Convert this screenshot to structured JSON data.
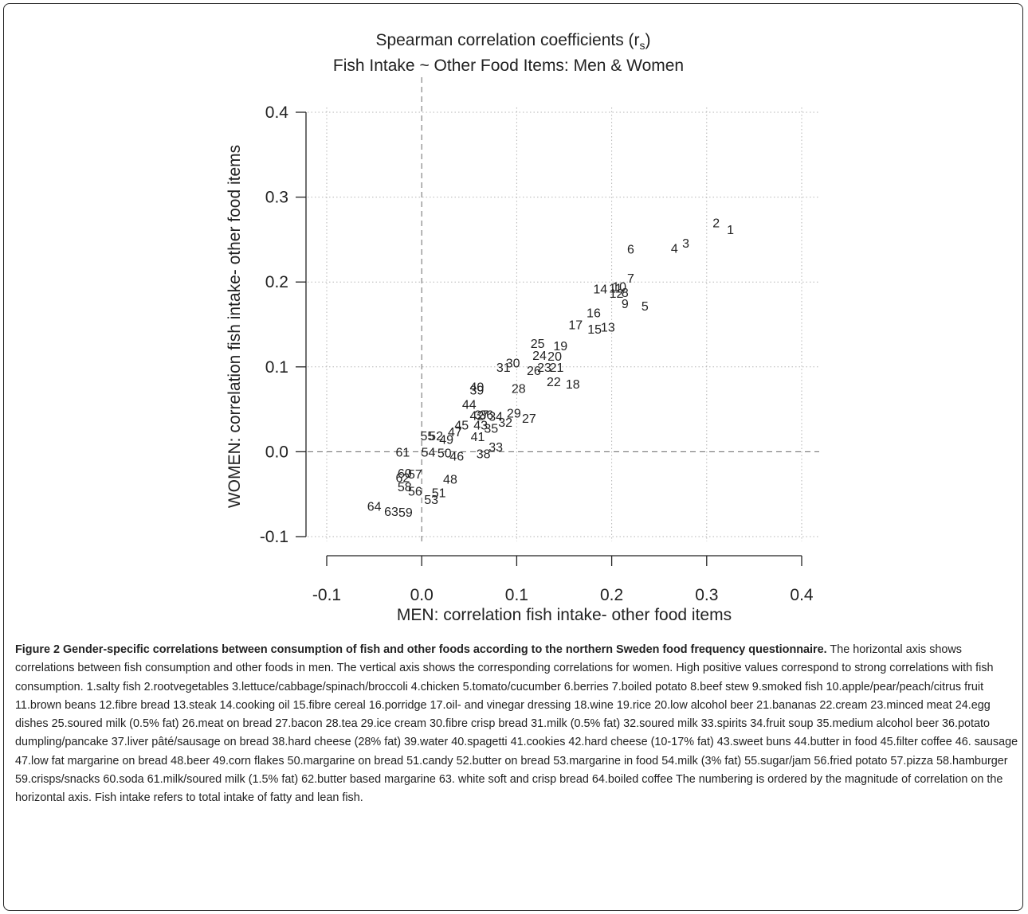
{
  "chart_data": {
    "type": "scatter",
    "title": "Spearman correlation coefficients (r",
    "title_subscript": "s",
    "title_close": ")",
    "subtitle": "Fish Intake ~ Other Food Items: Men & Women",
    "xlabel": "MEN: correlation fish intake- other food items",
    "ylabel": "WOMEN: correlation fish intake- other food items",
    "xlim": [
      -0.1,
      0.4
    ],
    "ylim": [
      -0.1,
      0.4
    ],
    "xticks": [
      "-0.1",
      "0.0",
      "0.1",
      "0.2",
      "0.3",
      "0.4"
    ],
    "yticks": [
      "-0.1",
      "0.0",
      "0.1",
      "0.2",
      "0.3",
      "0.4"
    ],
    "grid": true,
    "reference_lines": {
      "x": 0.0,
      "y": 0.0
    },
    "points": [
      {
        "label": "1",
        "x": 0.325,
        "y": 0.262
      },
      {
        "label": "2",
        "x": 0.31,
        "y": 0.27
      },
      {
        "label": "3",
        "x": 0.278,
        "y": 0.246
      },
      {
        "label": "4",
        "x": 0.266,
        "y": 0.24
      },
      {
        "label": "5",
        "x": 0.235,
        "y": 0.172
      },
      {
        "label": "6",
        "x": 0.22,
        "y": 0.239
      },
      {
        "label": "7",
        "x": 0.22,
        "y": 0.205
      },
      {
        "label": "8",
        "x": 0.214,
        "y": 0.188
      },
      {
        "label": "9",
        "x": 0.214,
        "y": 0.175
      },
      {
        "label": "10",
        "x": 0.208,
        "y": 0.195
      },
      {
        "label": "11",
        "x": 0.204,
        "y": 0.193
      },
      {
        "label": "12",
        "x": 0.205,
        "y": 0.187
      },
      {
        "label": "13",
        "x": 0.196,
        "y": 0.147
      },
      {
        "label": "14",
        "x": 0.188,
        "y": 0.192
      },
      {
        "label": "15",
        "x": 0.182,
        "y": 0.145
      },
      {
        "label": "16",
        "x": 0.181,
        "y": 0.164
      },
      {
        "label": "17",
        "x": 0.162,
        "y": 0.15
      },
      {
        "label": "18",
        "x": 0.159,
        "y": 0.08
      },
      {
        "label": "19",
        "x": 0.146,
        "y": 0.125
      },
      {
        "label": "20",
        "x": 0.14,
        "y": 0.113
      },
      {
        "label": "21",
        "x": 0.142,
        "y": 0.1
      },
      {
        "label": "22",
        "x": 0.139,
        "y": 0.083
      },
      {
        "label": "23",
        "x": 0.129,
        "y": 0.1
      },
      {
        "label": "24",
        "x": 0.124,
        "y": 0.114
      },
      {
        "label": "25",
        "x": 0.122,
        "y": 0.128
      },
      {
        "label": "26",
        "x": 0.118,
        "y": 0.096
      },
      {
        "label": "27",
        "x": 0.113,
        "y": 0.04
      },
      {
        "label": "28",
        "x": 0.102,
        "y": 0.075
      },
      {
        "label": "29",
        "x": 0.097,
        "y": 0.046
      },
      {
        "label": "30",
        "x": 0.096,
        "y": 0.105
      },
      {
        "label": "31",
        "x": 0.086,
        "y": 0.1
      },
      {
        "label": "32",
        "x": 0.088,
        "y": 0.035
      },
      {
        "label": "33",
        "x": 0.078,
        "y": 0.006
      },
      {
        "label": "34",
        "x": 0.078,
        "y": 0.042
      },
      {
        "label": "35",
        "x": 0.073,
        "y": 0.028
      },
      {
        "label": "36",
        "x": 0.068,
        "y": 0.044
      },
      {
        "label": "37",
        "x": 0.063,
        "y": 0.044
      },
      {
        "label": "38",
        "x": 0.065,
        "y": -0.002
      },
      {
        "label": "39",
        "x": 0.058,
        "y": 0.073
      },
      {
        "label": "40",
        "x": 0.058,
        "y": 0.077
      },
      {
        "label": "41",
        "x": 0.059,
        "y": 0.018
      },
      {
        "label": "42",
        "x": 0.058,
        "y": 0.043
      },
      {
        "label": "43",
        "x": 0.062,
        "y": 0.032
      },
      {
        "label": "44",
        "x": 0.05,
        "y": 0.056
      },
      {
        "label": "45",
        "x": 0.042,
        "y": 0.032
      },
      {
        "label": "46",
        "x": 0.037,
        "y": -0.005
      },
      {
        "label": "47",
        "x": 0.035,
        "y": 0.024
      },
      {
        "label": "48",
        "x": 0.03,
        "y": -0.032
      },
      {
        "label": "49",
        "x": 0.026,
        "y": 0.015
      },
      {
        "label": "50",
        "x": 0.024,
        "y": -0.001
      },
      {
        "label": "51",
        "x": 0.018,
        "y": -0.048
      },
      {
        "label": "52",
        "x": 0.015,
        "y": 0.019
      },
      {
        "label": "53",
        "x": 0.01,
        "y": -0.056
      },
      {
        "label": "54",
        "x": 0.007,
        "y": 0.0
      },
      {
        "label": "55",
        "x": 0.006,
        "y": 0.019
      },
      {
        "label": "56",
        "x": -0.007,
        "y": -0.046
      },
      {
        "label": "57",
        "x": -0.007,
        "y": -0.026
      },
      {
        "label": "58",
        "x": -0.018,
        "y": -0.041
      },
      {
        "label": "59",
        "x": -0.017,
        "y": -0.071
      },
      {
        "label": "60",
        "x": -0.018,
        "y": -0.025
      },
      {
        "label": "61",
        "x": -0.02,
        "y": 0.0
      },
      {
        "label": "62",
        "x": -0.02,
        "y": -0.03
      },
      {
        "label": "63",
        "x": -0.032,
        "y": -0.07
      },
      {
        "label": "64",
        "x": -0.05,
        "y": -0.064
      }
    ]
  },
  "caption": {
    "title": "Figure 2 Gender-specific correlations between consumption of fish and other foods according to the northern Sweden food frequency questionnaire.",
    "body": " The horizontal axis shows correlations between fish consumption and other foods in men. The vertical axis shows the corresponding correlations for women. High positive values correspond to strong correlations with fish consumption. 1.salty fish 2.rootvegetables 3.lettuce/cabbage/spinach/broccoli 4.chicken 5.tomato/cucumber 6.berries 7.boiled potato 8.beef stew 9.smoked fish 10.apple/pear/peach/citrus fruit 11.brown beans 12.fibre bread 13.steak 14.cooking oil 15.fibre cereal 16.porridge 17.oil- and vinegar dressing 18.wine 19.rice 20.low alcohol beer 21.bananas 22.cream 23.minced meat 24.egg dishes 25.soured milk (0.5% fat) 26.meat on bread  27.bacon 28.tea 29.ice cream 30.fibre crisp bread 31.milk (0.5% fat) 32.soured milk 33.spirits 34.fruit soup 35.medium alcohol beer 36.potato dumpling/pancake 37.liver pâté/sausage on bread 38.hard cheese (28% fat) 39.water 40.spagetti 41.cookies 42.hard cheese (10-17% fat) 43.sweet buns 44.butter in food 45.filter coffee 46. sausage 47.low fat margarine on bread 48.beer 49.corn flakes 50.margarine on bread 51.candy 52.butter on bread 53.margarine in food 54.milk (3% fat) 55.sugar/jam 56.fried potato 57.pizza 58.hamburger 59.crisps/snacks 60.soda 61.milk/soured milk (1.5% fat) 62.butter based margarine 63. white soft and crisp bread 64.boiled coffee The numbering is ordered by the magnitude of correlation on the horizontal axis. Fish intake refers to total intake of fatty and lean fish."
  }
}
